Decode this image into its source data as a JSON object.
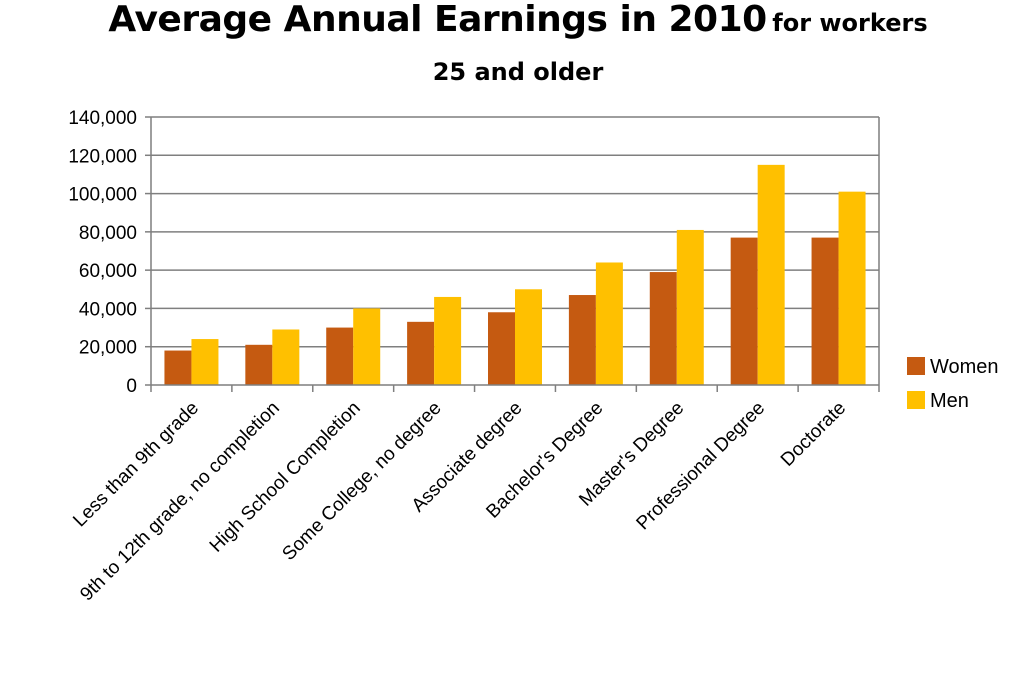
{
  "chart_data": {
    "type": "bar",
    "title": "Average Annual Earnings in 2010",
    "subtitle_inline": "for workers",
    "subtitle_line2": "25 and older",
    "xlabel": "",
    "ylabel": "",
    "ylim": [
      0,
      140000
    ],
    "yticks": [
      "0",
      "20,000",
      "40,000",
      "60,000",
      "80,000",
      "100,000",
      "120,000",
      "140,000"
    ],
    "grid": true,
    "legend_position": "right",
    "categories": [
      "Less than 9th grade",
      "9th to 12th grade, no completion",
      "High School Completion",
      "Some College, no degree",
      "Associate degree",
      "Bachelor's Degree",
      "Master's Degree",
      "Professional Degree",
      "Doctorate"
    ],
    "series": [
      {
        "name": "Women",
        "color": "#c55a11",
        "values": [
          18000,
          21000,
          30000,
          33000,
          38000,
          47000,
          59000,
          77000,
          77000
        ]
      },
      {
        "name": "Men",
        "color": "#ffc000",
        "values": [
          24000,
          29000,
          40000,
          46000,
          50000,
          64000,
          81000,
          115000,
          101000
        ]
      }
    ]
  }
}
